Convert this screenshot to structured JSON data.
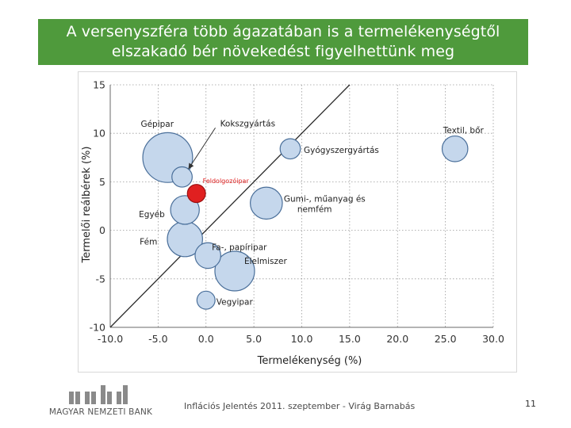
{
  "header": {
    "title_line1": "A versenyszféra több ágazatában is a termelékenységtől",
    "title_line2": "elszakadó bér növekedést figyelhettünk meg"
  },
  "footer": {
    "logo_text": "MAGYAR NEMZETI BANK",
    "text": "Inflációs Jelentés 2011. szeptember - Virág Barnabás",
    "page_number": "11"
  },
  "colors": {
    "title_bg": "#4f9a3c",
    "bubble_fill": "#c5d7ec",
    "bubble_stroke": "#4a6f9a",
    "highlight": "#e02020",
    "logo_bars": "#8a8a8a"
  },
  "chart_data": {
    "type": "scatter",
    "variant": "bubble",
    "title": "",
    "xlabel": "Termelékenység (%)",
    "ylabel": "Termelői reálbérek (%)",
    "xlim": [
      -10,
      30
    ],
    "ylim": [
      -10,
      15
    ],
    "xticks": [
      "-10.0",
      "-5.0",
      "0.0",
      "5.0",
      "10.0",
      "15.0",
      "20.0",
      "25.0",
      "30.0"
    ],
    "yticks": [
      "15",
      "10",
      "5",
      "0",
      "-5",
      "-10"
    ],
    "grid": "dotted",
    "reference_line": "y = x",
    "points": [
      {
        "label": "Gépipar",
        "x": -4.0,
        "y": 7.5,
        "size": 6
      },
      {
        "label": "Kokszgyártás",
        "x": -2.5,
        "y": 5.5,
        "size": 1
      },
      {
        "label": "Feldolgozóipar",
        "x": -1.0,
        "y": 3.8,
        "size": 0.8,
        "highlight": true
      },
      {
        "label": "Egyéb",
        "x": -2.2,
        "y": 2.1,
        "size": 2
      },
      {
        "label": "Fém",
        "x": -2.2,
        "y": -0.9,
        "size": 3
      },
      {
        "label": "Fa-, papíripar",
        "x": 0.2,
        "y": -2.6,
        "size": 1.6
      },
      {
        "label": "Élelmiszer",
        "x": 3.0,
        "y": -4.2,
        "size": 3.8
      },
      {
        "label": "Vegyipar",
        "x": 0.0,
        "y": -7.2,
        "size": 0.8
      },
      {
        "label": "Gumi-, műanyag és nemfém",
        "x": 6.3,
        "y": 2.8,
        "size": 2.5
      },
      {
        "label": "Gyógyszergyártás",
        "x": 8.8,
        "y": 8.4,
        "size": 1
      },
      {
        "label": "Textil, bőr",
        "x": 26.0,
        "y": 8.4,
        "size": 1.6
      }
    ]
  }
}
